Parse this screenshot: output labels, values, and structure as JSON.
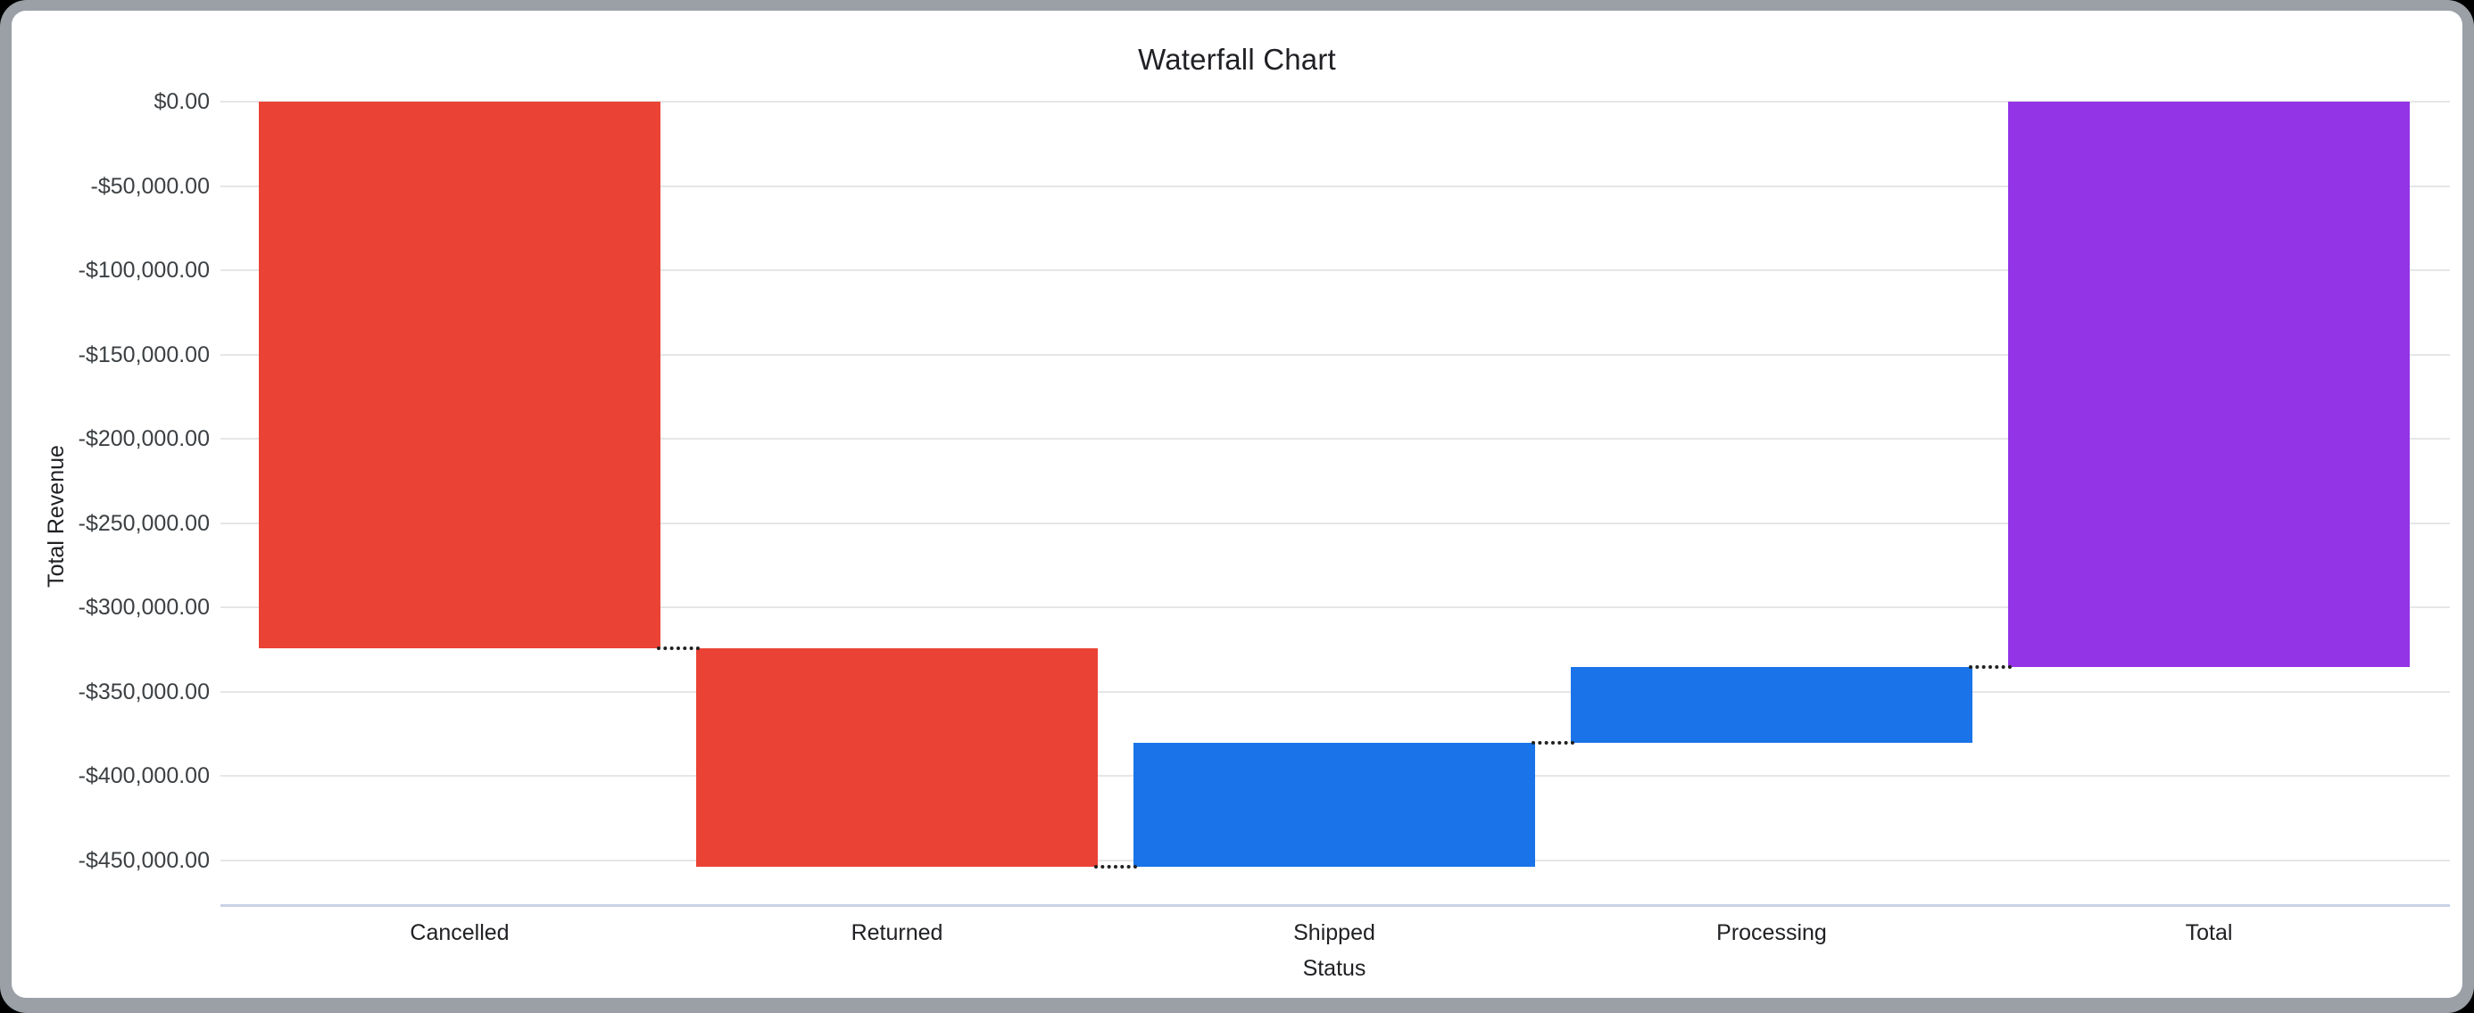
{
  "window": {
    "frame_color": "#9aa0a6",
    "outside_color": "#000000",
    "card_color": "#ffffff"
  },
  "chart_data": {
    "type": "waterfall",
    "title": "Waterfall Chart",
    "xlabel": "Status",
    "ylabel": "Total Revenue",
    "categories": [
      "Cancelled",
      "Returned",
      "Shipped",
      "Processing",
      "Total"
    ],
    "series": [
      {
        "name": "Cancelled",
        "change": -324000,
        "cumulative_start": 0,
        "cumulative_end": -324000,
        "role": "decrease",
        "color": "#EA4335"
      },
      {
        "name": "Returned",
        "change": -129500,
        "cumulative_start": -324000,
        "cumulative_end": -453500,
        "role": "decrease",
        "color": "#EA4335"
      },
      {
        "name": "Shipped",
        "change": 73500,
        "cumulative_start": -453500,
        "cumulative_end": -380000,
        "role": "increase",
        "color": "#1A73E8"
      },
      {
        "name": "Processing",
        "change": 45000,
        "cumulative_start": -380000,
        "cumulative_end": -335000,
        "role": "increase",
        "color": "#1A73E8"
      },
      {
        "name": "Total",
        "change": -335000,
        "cumulative_start": 0,
        "cumulative_end": -335000,
        "role": "total",
        "color": "#9334E6"
      }
    ],
    "y_axis": {
      "ticks": [
        {
          "value": 0,
          "label": "$0.00"
        },
        {
          "value": -50000,
          "label": "-$50,000.00"
        },
        {
          "value": -100000,
          "label": "-$100,000.00"
        },
        {
          "value": -150000,
          "label": "-$150,000.00"
        },
        {
          "value": -200000,
          "label": "-$200,000.00"
        },
        {
          "value": -250000,
          "label": "-$250,000.00"
        },
        {
          "value": -300000,
          "label": "-$300,000.00"
        },
        {
          "value": -350000,
          "label": "-$350,000.00"
        },
        {
          "value": -400000,
          "label": "-$400,000.00"
        },
        {
          "value": -450000,
          "label": "-$450,000.00"
        }
      ],
      "range": [
        0,
        -476500
      ]
    },
    "grid": true,
    "legend": "none",
    "connector_style": "dotted",
    "colors": {
      "decrease": "#EA4335",
      "increase": "#1A73E8",
      "total": "#9334E6",
      "gridline": "#e6e6e6",
      "axis_line": "#c9d2e8",
      "connector": "#212121",
      "text": "#202124"
    }
  }
}
